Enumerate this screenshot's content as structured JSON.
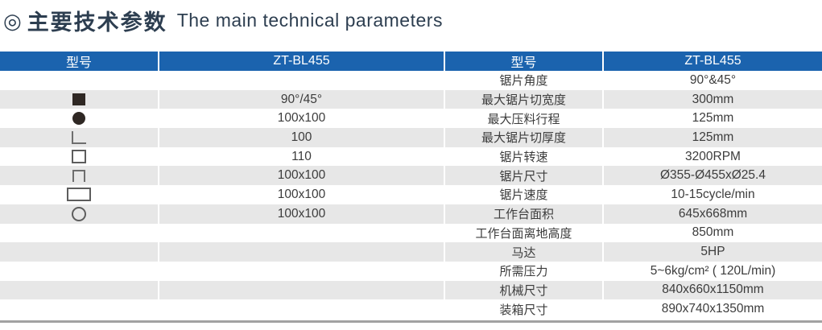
{
  "title": {
    "bullet": "◎",
    "zh": "主要技术参数",
    "en": "The main technical parameters"
  },
  "colors": {
    "header_bg": "#1b63ae",
    "stripe_gray": "#e7e7e7",
    "title_text": "#2d3e50",
    "body_text": "#3c3c3c"
  },
  "table": {
    "header": [
      "型号",
      "ZT-BL455",
      "型号",
      "ZT-BL455"
    ],
    "rows": [
      {
        "icon": "",
        "capacity": "",
        "param": "锯片角度",
        "value": "90°&45°"
      },
      {
        "icon": "filled-square",
        "capacity": "90°/45°",
        "param": "最大锯片切宽度",
        "value": "300mm"
      },
      {
        "icon": "filled-circle",
        "capacity": "100x100",
        "param": "最大压料行程",
        "value": "125mm"
      },
      {
        "icon": "angle",
        "capacity": "100",
        "param": "最大锯片切厚度",
        "value": "125mm"
      },
      {
        "icon": "square-outline",
        "capacity": "110",
        "param": "锯片转速",
        "value": "3200RPM"
      },
      {
        "icon": "channel",
        "capacity": "100x100",
        "param": "锯片尺寸",
        "value": "Ø355-Ø455xØ25.4"
      },
      {
        "icon": "rect-outline",
        "capacity": "100x100",
        "param": "锯片速度",
        "value": "10-15cycle/min"
      },
      {
        "icon": "circle-outline",
        "capacity": "100x100",
        "param": "工作台面积",
        "value": "645x668mm"
      },
      {
        "icon": "",
        "capacity": "",
        "param": "工作台面离地高度",
        "value": "850mm"
      },
      {
        "icon": "",
        "capacity": "",
        "param": "马达",
        "value": "5HP"
      },
      {
        "icon": "",
        "capacity": "",
        "param": "所需压力",
        "value": "5~6kg/cm² ( 120L/min)"
      },
      {
        "icon": "",
        "capacity": "",
        "param": "机械尺寸",
        "value": "840x660x1150mm"
      },
      {
        "icon": "",
        "capacity": "",
        "param": "装箱尺寸",
        "value": "890x740x1350mm"
      }
    ]
  }
}
